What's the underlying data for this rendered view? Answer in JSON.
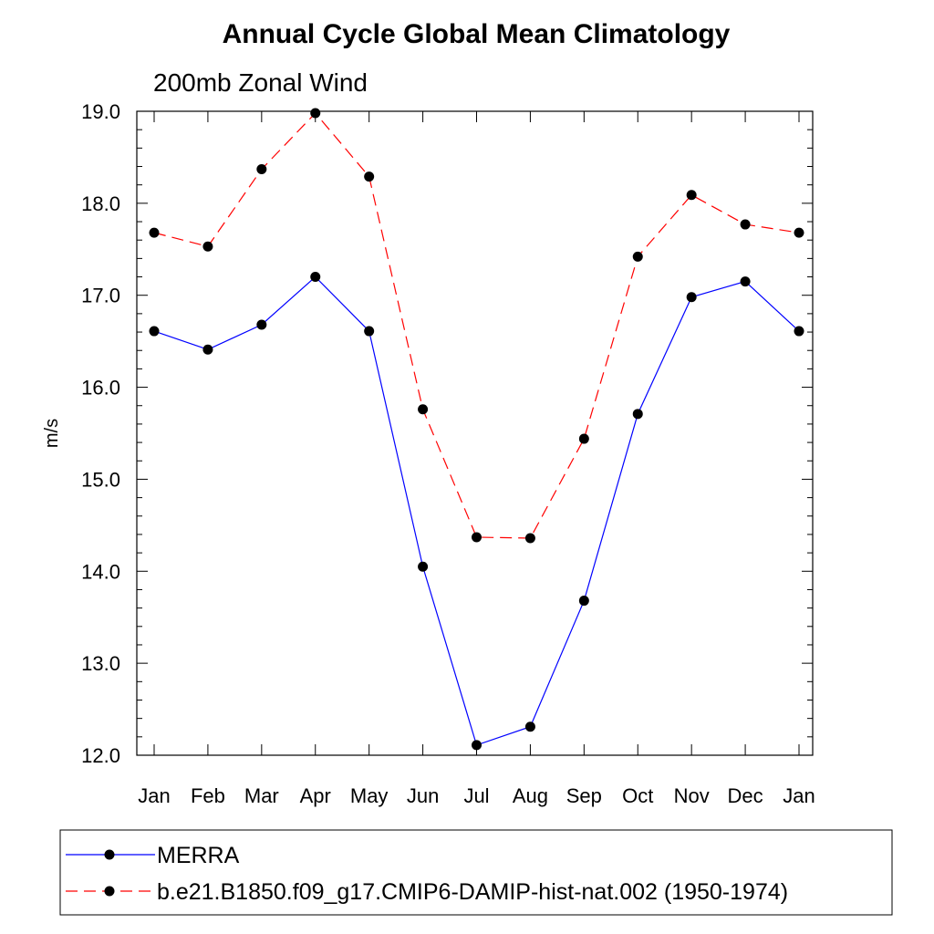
{
  "chart_data": {
    "type": "line",
    "title": "Annual Cycle Global Mean Climatology",
    "subtitle": "200mb Zonal Wind",
    "xlabel": "",
    "ylabel": "m/s",
    "categories": [
      "Jan",
      "Feb",
      "Mar",
      "Apr",
      "May",
      "Jun",
      "Jul",
      "Aug",
      "Sep",
      "Oct",
      "Nov",
      "Dec",
      "Jan"
    ],
    "ylim": [
      12.0,
      19.0
    ],
    "yticks": [
      "12.0",
      "13.0",
      "14.0",
      "15.0",
      "16.0",
      "17.0",
      "18.0",
      "19.0"
    ],
    "grid": false,
    "legend_position": "bottom",
    "series": [
      {
        "name": "MERRA",
        "color": "#0000ff",
        "style": "solid",
        "values": [
          16.61,
          16.41,
          16.68,
          17.2,
          16.61,
          14.05,
          12.11,
          12.31,
          13.68,
          15.71,
          16.98,
          17.15,
          16.61
        ]
      },
      {
        "name": "b.e21.B1850.f09_g17.CMIP6-DAMIP-hist-nat.002 (1950-1974)",
        "color": "#ff0000",
        "style": "dashed",
        "values": [
          17.68,
          17.53,
          18.37,
          18.98,
          18.29,
          15.76,
          14.37,
          14.36,
          15.44,
          17.42,
          18.09,
          17.77,
          17.68
        ]
      }
    ]
  }
}
